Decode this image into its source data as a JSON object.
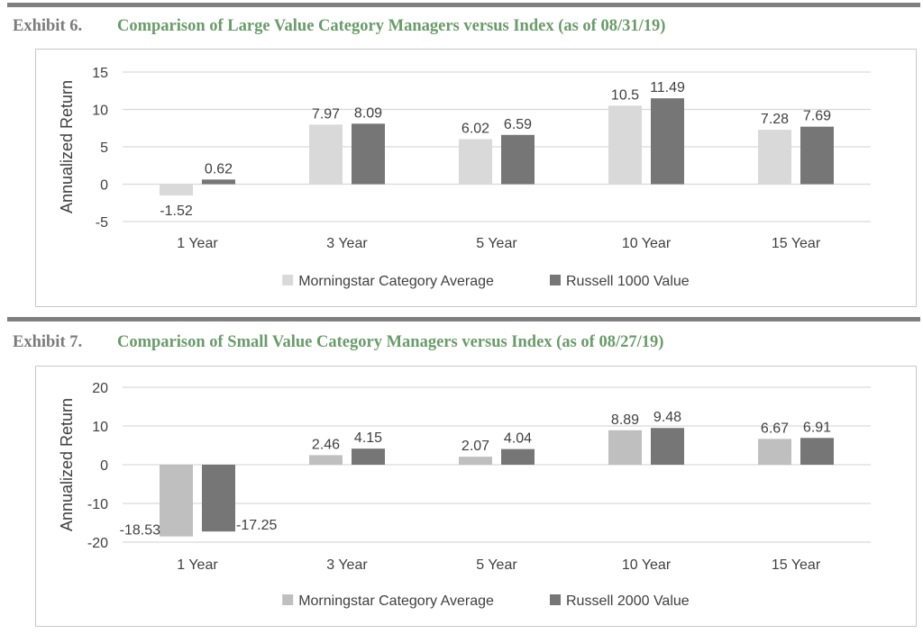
{
  "colors": {
    "rule": "#7f7f7f",
    "title_label": "#7b7b7b",
    "title_text": "#6a9b6a"
  },
  "exhibits": [
    {
      "label": "Exhibit 6.",
      "title": "Comparison of Large Value Category Managers versus Index (as of 08/31/19)"
    },
    {
      "label": "Exhibit 7.",
      "title": "Comparison of Small Value Category Managers versus Index (as of 08/27/19)"
    }
  ],
  "chart_data": [
    {
      "type": "bar",
      "title": "Comparison of Large Value Category Managers versus Index (as of 08/31/19)",
      "categories": [
        "1 Year",
        "3 Year",
        "5 Year",
        "10 Year",
        "15 Year"
      ],
      "series": [
        {
          "name": "Morningstar Category Average",
          "values": [
            -1.52,
            7.97,
            6.02,
            10.5,
            7.28
          ],
          "labels": [
            "-1.52",
            "7.97",
            "6.02",
            "10.5",
            "7.28"
          ],
          "color": "#d9d9d9"
        },
        {
          "name": "Russell 1000 Value",
          "values": [
            0.62,
            8.09,
            6.59,
            11.49,
            7.69
          ],
          "labels": [
            "0.62",
            "8.09",
            "6.59",
            "11.49",
            "7.69"
          ],
          "color": "#767676"
        }
      ],
      "ylabel": "Annualized Return",
      "ylim": [
        -5,
        15
      ],
      "yticks": [
        -5,
        0,
        5,
        10,
        15
      ],
      "grid": true,
      "legend": "bottom"
    },
    {
      "type": "bar",
      "title": "Comparison of Small Value Category Managers versus Index (as of 08/27/19)",
      "categories": [
        "1 Year",
        "3 Year",
        "5 Year",
        "10 Year",
        "15 Year"
      ],
      "series": [
        {
          "name": "Morningstar Category Average",
          "values": [
            -18.53,
            2.46,
            2.07,
            8.89,
            6.67
          ],
          "labels": [
            "-18.53",
            "2.46",
            "2.07",
            "8.89",
            "6.67"
          ],
          "color": "#bfbfbf"
        },
        {
          "name": "Russell 2000 Value",
          "values": [
            -17.25,
            4.15,
            4.04,
            9.48,
            6.91
          ],
          "labels": [
            "-17.25",
            "4.15",
            "4.04",
            "9.48",
            "6.91"
          ],
          "color": "#767676"
        }
      ],
      "ylabel": "Annualized Return",
      "ylim": [
        -20,
        20
      ],
      "yticks": [
        -20,
        -10,
        0,
        10,
        20
      ],
      "grid": true,
      "legend": "bottom"
    }
  ]
}
